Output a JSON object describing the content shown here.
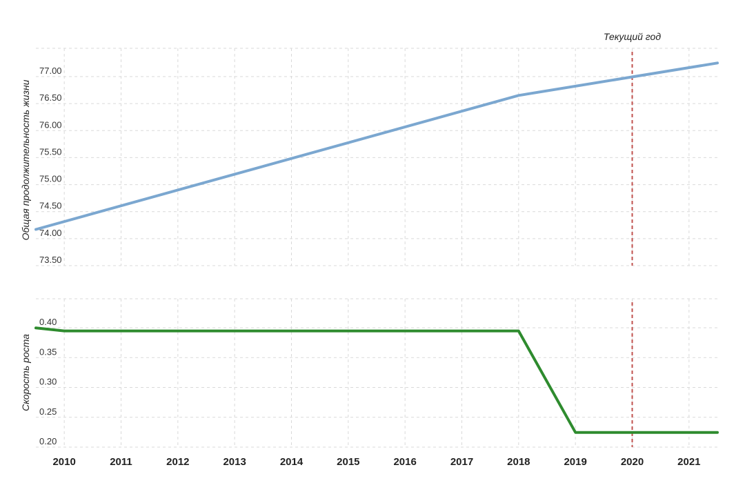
{
  "chart_data": [
    {
      "type": "line",
      "ylabel": "Общая продолжительность жизни",
      "x": [
        2009.5,
        2018.0,
        2021.5
      ],
      "series": [
        {
          "values": [
            74.12,
            76.6,
            77.2
          ],
          "color": "#7ba7d0"
        }
      ],
      "y_ticks": [
        "73.50",
        "74.00",
        "74.50",
        "75.00",
        "75.50",
        "76.00",
        "76.50",
        "77.00"
      ],
      "ylim": [
        73.5,
        77.4
      ],
      "grid": true,
      "annotation": {
        "text": "Текущий год",
        "x": 2020,
        "color": "#c0504d"
      }
    },
    {
      "type": "line",
      "ylabel": "Скорость роста",
      "x": [
        2009.5,
        2010.0,
        2018.0,
        2019.0,
        2021.5
      ],
      "series": [
        {
          "values": [
            0.395,
            0.39,
            0.39,
            0.22,
            0.22
          ],
          "color": "#2e8b2e"
        }
      ],
      "y_ticks": [
        "0.20",
        "0.25",
        "0.30",
        "0.35",
        "0.40"
      ],
      "ylim": [
        0.2,
        0.43
      ],
      "grid": true,
      "annotation": {
        "x": 2020,
        "color": "#c0504d"
      }
    }
  ],
  "x_axis": {
    "ticks": [
      "2010",
      "2011",
      "2012",
      "2013",
      "2014",
      "2015",
      "2016",
      "2017",
      "2018",
      "2019",
      "2020",
      "2021"
    ],
    "range": [
      2009.5,
      2021.5
    ]
  }
}
